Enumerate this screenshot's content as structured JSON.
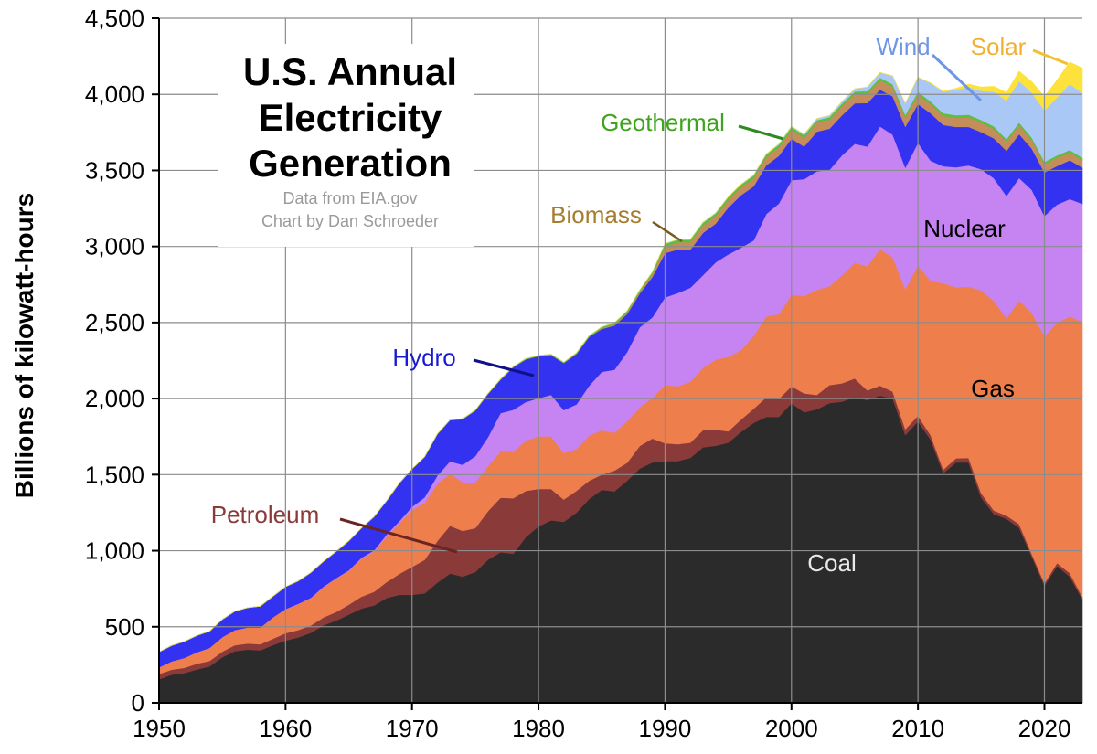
{
  "chart_data": {
    "type": "area",
    "stacked": true,
    "title": [
      "U.S. Annual",
      "Electricity",
      "Generation"
    ],
    "credits": [
      "Data from EIA.gov",
      "Chart by Dan Schroeder"
    ],
    "xlabel": "",
    "ylabel": "Billions of kilowatt-hours",
    "xlim": [
      1950,
      2023
    ],
    "ylim": [
      0,
      4500
    ],
    "x_ticks": [
      "1950",
      "1960",
      "1970",
      "1980",
      "1990",
      "2000",
      "2010",
      "2020"
    ],
    "y_ticks": [
      "0",
      "500",
      "1,000",
      "1,500",
      "2,000",
      "2,500",
      "3,000",
      "3,500",
      "4,000",
      "4,500"
    ],
    "x": [
      1950,
      1951,
      1952,
      1953,
      1954,
      1955,
      1956,
      1957,
      1958,
      1959,
      1960,
      1961,
      1962,
      1963,
      1964,
      1965,
      1966,
      1967,
      1968,
      1969,
      1970,
      1971,
      1972,
      1973,
      1974,
      1975,
      1976,
      1977,
      1978,
      1979,
      1980,
      1981,
      1982,
      1983,
      1984,
      1985,
      1986,
      1987,
      1988,
      1989,
      1990,
      1991,
      1992,
      1993,
      1994,
      1995,
      1996,
      1997,
      1998,
      1999,
      2000,
      2001,
      2002,
      2003,
      2004,
      2005,
      2006,
      2007,
      2008,
      2009,
      2010,
      2011,
      2012,
      2013,
      2014,
      2015,
      2016,
      2017,
      2018,
      2019,
      2020,
      2021,
      2022,
      2023
    ],
    "series": [
      {
        "name": "Coal",
        "color": "#2b2b2b",
        "values": [
          155,
          185,
          195,
          220,
          240,
          300,
          340,
          350,
          345,
          380,
          410,
          430,
          460,
          510,
          540,
          580,
          620,
          640,
          690,
          710,
          710,
          720,
          790,
          850,
          830,
          860,
          940,
          990,
          980,
          1090,
          1160,
          1200,
          1190,
          1250,
          1340,
          1400,
          1390,
          1460,
          1540,
          1580,
          1590,
          1590,
          1610,
          1680,
          1690,
          1710,
          1780,
          1840,
          1880,
          1880,
          1970,
          1910,
          1930,
          1970,
          1980,
          2010,
          1990,
          2020,
          2000,
          1760,
          1850,
          1730,
          1510,
          1580,
          1580,
          1350,
          1240,
          1210,
          1150,
          960,
          770,
          900,
          830,
          680
        ]
      },
      {
        "name": "Petroleum",
        "color": "#8b3a3a",
        "values": [
          34,
          33,
          35,
          38,
          36,
          37,
          39,
          40,
          40,
          42,
          48,
          49,
          49,
          52,
          57,
          65,
          78,
          90,
          104,
          138,
          184,
          220,
          274,
          314,
          301,
          289,
          320,
          358,
          365,
          303,
          246,
          206,
          147,
          144,
          120,
          100,
          137,
          118,
          149,
          158,
          117,
          111,
          100,
          112,
          106,
          75,
          82,
          93,
          129,
          118,
          111,
          125,
          94,
          119,
          121,
          122,
          64,
          66,
          46,
          39,
          37,
          30,
          23,
          27,
          30,
          28,
          24,
          21,
          25,
          18,
          17,
          19,
          23,
          16
        ]
      },
      {
        "name": "Gas",
        "color": "#ee7f4c",
        "values": [
          45,
          55,
          65,
          75,
          85,
          95,
          100,
          105,
          110,
          140,
          158,
          170,
          180,
          200,
          220,
          222,
          250,
          265,
          300,
          333,
          373,
          374,
          376,
          341,
          320,
          300,
          295,
          306,
          305,
          330,
          346,
          346,
          305,
          274,
          297,
          292,
          249,
          273,
          253,
          267,
          382,
          380,
          400,
          410,
          460,
          490,
          455,
          479,
          531,
          556,
          601,
          639,
          691,
          650,
          710,
          761,
          816,
          897,
          883,
          921,
          988,
          1014,
          1226,
          1125,
          1126,
          1333,
          1379,
          1296,
          1469,
          1586,
          1624,
          1579,
          1687,
          1810
        ]
      },
      {
        "name": "Nuclear",
        "color": "#c584f2",
        "values": [
          0,
          0,
          0,
          0,
          0,
          0,
          0,
          0,
          0,
          0,
          1,
          2,
          2,
          3,
          3,
          4,
          6,
          8,
          13,
          14,
          22,
          38,
          54,
          83,
          114,
          173,
          191,
          251,
          276,
          255,
          251,
          273,
          283,
          294,
          328,
          384,
          414,
          455,
          527,
          529,
          577,
          613,
          619,
          610,
          640,
          673,
          675,
          628,
          673,
          728,
          754,
          769,
          780,
          764,
          789,
          782,
          787,
          806,
          806,
          799,
          807,
          790,
          769,
          789,
          797,
          797,
          806,
          805,
          807,
          809,
          790,
          778,
          772,
          775
        ]
      },
      {
        "name": "Hydro",
        "color": "#3232f0",
        "values": [
          100,
          104,
          108,
          110,
          110,
          116,
          123,
          130,
          140,
          138,
          146,
          150,
          165,
          165,
          175,
          193,
          195,
          220,
          222,
          250,
          248,
          265,
          272,
          270,
          300,
          300,
          284,
          220,
          280,
          280,
          276,
          261,
          309,
          332,
          321,
          281,
          290,
          249,
          222,
          265,
          290,
          286,
          250,
          277,
          254,
          308,
          345,
          355,
          320,
          314,
          273,
          214,
          260,
          271,
          263,
          266,
          286,
          242,
          252,
          268,
          255,
          312,
          271,
          265,
          253,
          244,
          262,
          296,
          288,
          270,
          286,
          253,
          255,
          238
        ]
      },
      {
        "name": "Biomass",
        "color": "#c48d5a",
        "values": [
          0,
          0,
          0,
          0,
          0,
          0,
          0,
          0,
          0,
          0,
          0,
          0,
          0,
          0,
          0,
          0,
          0,
          0,
          0,
          0,
          0,
          0,
          0,
          0,
          0,
          0,
          0,
          0,
          0,
          0,
          0,
          0,
          0,
          0,
          0,
          5,
          8,
          10,
          12,
          20,
          45,
          47,
          49,
          50,
          51,
          52,
          53,
          54,
          55,
          56,
          60,
          59,
          60,
          60,
          61,
          62,
          62,
          63,
          63,
          62,
          63,
          61,
          60,
          60,
          64,
          63,
          62,
          62,
          60,
          57,
          54,
          54,
          52,
          48
        ]
      },
      {
        "name": "Geothermal",
        "color": "#5bbf3f",
        "values": [
          0,
          0,
          0,
          0,
          0,
          0,
          0,
          0,
          0,
          0,
          0,
          0,
          0,
          0,
          0,
          0,
          0,
          0,
          0,
          0,
          1,
          1,
          2,
          2,
          3,
          3,
          4,
          4,
          5,
          5,
          5,
          6,
          6,
          7,
          8,
          9,
          11,
          11,
          11,
          13,
          16,
          16,
          16,
          17,
          17,
          16,
          16,
          17,
          17,
          17,
          16,
          16,
          16,
          16,
          16,
          16,
          16,
          16,
          16,
          17,
          17,
          17,
          17,
          17,
          17,
          17,
          17,
          16,
          16,
          16,
          16,
          16,
          16,
          16
        ]
      },
      {
        "name": "Wind",
        "color": "#aac8f5",
        "values": [
          0,
          0,
          0,
          0,
          0,
          0,
          0,
          0,
          0,
          0,
          0,
          0,
          0,
          0,
          0,
          0,
          0,
          0,
          0,
          0,
          0,
          0,
          0,
          0,
          0,
          0,
          0,
          0,
          0,
          0,
          0,
          0,
          0,
          0,
          0,
          0,
          0,
          0,
          0,
          0,
          3,
          3,
          3,
          3,
          3,
          3,
          3,
          3,
          3,
          5,
          6,
          7,
          10,
          11,
          14,
          18,
          27,
          34,
          55,
          74,
          95,
          120,
          141,
          168,
          182,
          191,
          227,
          254,
          273,
          295,
          338,
          380,
          434,
          425
        ]
      },
      {
        "name": "Solar",
        "color": "#fde23b",
        "values": [
          0,
          0,
          0,
          0,
          0,
          0,
          0,
          0,
          0,
          0,
          0,
          0,
          0,
          0,
          0,
          0,
          0,
          0,
          0,
          0,
          0,
          0,
          0,
          0,
          0,
          0,
          0,
          0,
          0,
          0,
          0,
          0,
          0,
          0,
          0,
          0,
          0,
          0,
          0,
          0,
          0,
          0,
          0,
          0,
          0,
          0,
          0,
          0,
          0,
          0,
          0,
          0,
          0,
          0,
          0,
          0,
          0,
          1,
          1,
          1,
          1,
          2,
          4,
          9,
          18,
          25,
          36,
          53,
          64,
          72,
          90,
          115,
          143,
          165
        ]
      }
    ],
    "annotations": [
      {
        "text": "Coal",
        "color": "#e8e8e8"
      },
      {
        "text": "Gas",
        "color": "#000000"
      },
      {
        "text": "Nuclear",
        "color": "#000000"
      },
      {
        "text": "Petroleum",
        "color": "#8b3a3a"
      },
      {
        "text": "Hydro",
        "color": "#1a1ad0"
      },
      {
        "text": "Biomass",
        "color": "#a67c2e"
      },
      {
        "text": "Geothermal",
        "color": "#3fa31f"
      },
      {
        "text": "Wind",
        "color": "#6f96e6"
      },
      {
        "text": "Solar",
        "color": "#f2b030"
      }
    ]
  }
}
